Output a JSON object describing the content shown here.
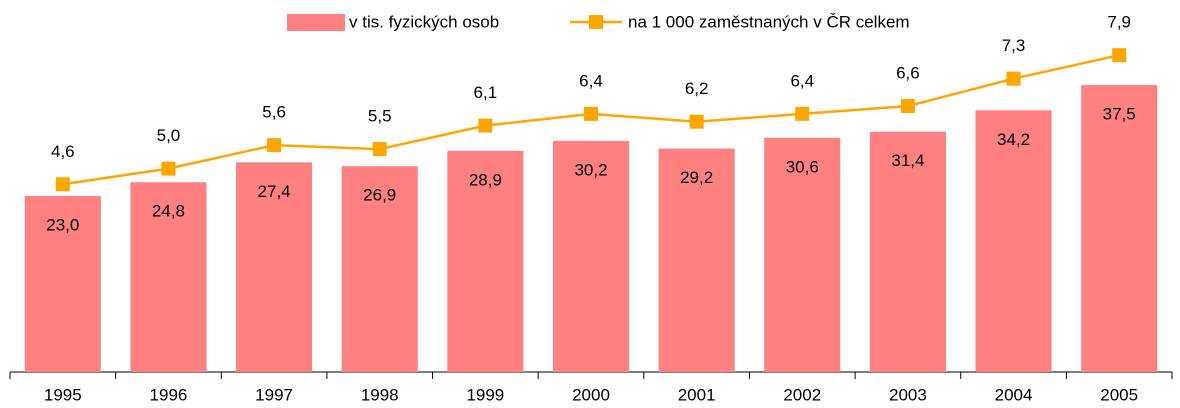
{
  "chart_data": {
    "type": "bar+line",
    "categories": [
      "1995",
      "1996",
      "1997",
      "1998",
      "1999",
      "2000",
      "2001",
      "2002",
      "2003",
      "2004",
      "2005"
    ],
    "series": [
      {
        "name": "v tis. fyzických osob",
        "type": "bar",
        "color": "#ff8080",
        "values": [
          23.0,
          24.8,
          27.4,
          26.9,
          28.9,
          30.2,
          29.2,
          30.6,
          31.4,
          34.2,
          37.5
        ],
        "value_labels": [
          "23,0",
          "24,8",
          "27,4",
          "26,9",
          "28,9",
          "30,2",
          "29,2",
          "30,6",
          "31,4",
          "34,2",
          "37,5"
        ]
      },
      {
        "name": "na 1 000 zaměstnaných v ČR celkem",
        "type": "line",
        "axis": "y2",
        "color": "#ffa500",
        "values": [
          4.6,
          5.0,
          5.6,
          5.5,
          6.1,
          6.4,
          6.2,
          6.4,
          6.6,
          7.3,
          7.9
        ],
        "value_labels": [
          "4,6",
          "5,0",
          "5,6",
          "5,5",
          "6,1",
          "6,4",
          "6,2",
          "6,4",
          "6,6",
          "7,3",
          "7,9"
        ]
      }
    ],
    "ylim": [
      0,
      46
    ],
    "y2lim": [
      -0.2,
      8.8
    ],
    "legend": "top"
  }
}
